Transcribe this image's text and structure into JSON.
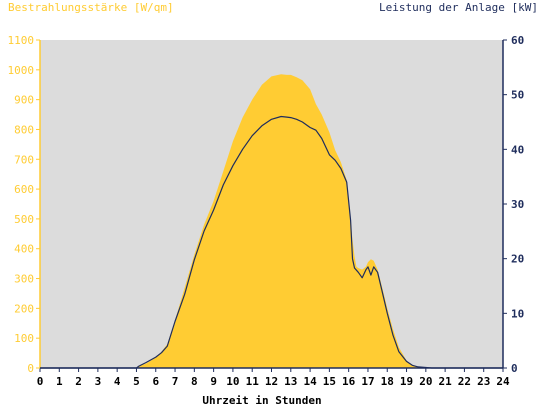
{
  "chart_data": {
    "type": "area",
    "title": "",
    "xlabel": "Uhrzeit in Stunden",
    "ylabel_left": "Bestrahlungsstärke [W/qm]",
    "ylabel_right": "Leistung der Anlage [kW]",
    "xlim": [
      0,
      24
    ],
    "ylim_left": [
      0,
      1100
    ],
    "ylim_right": [
      0,
      60
    ],
    "x_ticks": [
      "0",
      "1",
      "2",
      "3",
      "4",
      "5",
      "6",
      "7",
      "8",
      "9",
      "10",
      "11",
      "12",
      "13",
      "14",
      "15",
      "16",
      "17",
      "18",
      "19",
      "20",
      "21",
      "22",
      "23",
      "24"
    ],
    "y_left_ticks": [
      "0",
      "100",
      "200",
      "300",
      "400",
      "500",
      "600",
      "700",
      "800",
      "900",
      "1000",
      "1100"
    ],
    "y_right_ticks": [
      "0",
      "10",
      "20",
      "30",
      "40",
      "50",
      "60"
    ],
    "colors": {
      "plot_background": "#dcdcdc",
      "irradiance_fill": "#ffcc33",
      "power_line": "#1f2d5c",
      "left_axis_text": "#ffcc33",
      "right_axis_text": "#1f2d5c",
      "xlabel_text": "#000000"
    },
    "series": [
      {
        "axis": "left",
        "style": "area",
        "x": [
          0,
          5.0,
          5.1,
          5.5,
          6.0,
          6.3,
          6.6,
          7.0,
          7.5,
          8.0,
          8.5,
          9.0,
          9.5,
          10.0,
          10.5,
          11.0,
          11.5,
          12.0,
          12.5,
          12.8,
          13.0,
          13.3,
          13.6,
          14.0,
          14.3,
          14.6,
          15.0,
          15.3,
          15.6,
          15.9,
          16.2,
          16.3,
          16.4,
          16.5,
          16.7,
          16.9,
          17.0,
          17.15,
          17.3,
          17.5,
          17.7,
          18.0,
          18.3,
          18.6,
          19.0,
          19.3,
          19.6,
          20.0,
          20.3,
          20.5,
          24
        ],
        "y": [
          0,
          0,
          5,
          15,
          35,
          55,
          80,
          160,
          270,
          380,
          480,
          560,
          660,
          760,
          840,
          900,
          950,
          978,
          985,
          983,
          983,
          975,
          965,
          935,
          885,
          850,
          790,
          730,
          690,
          630,
          430,
          375,
          340,
          335,
          330,
          340,
          355,
          365,
          360,
          330,
          280,
          200,
          130,
          70,
          25,
          10,
          5,
          2,
          1,
          0,
          0
        ]
      },
      {
        "axis": "right",
        "style": "line",
        "x": [
          0,
          5.0,
          5.1,
          5.5,
          6.0,
          6.3,
          6.6,
          7.0,
          7.5,
          8.0,
          8.5,
          9.0,
          9.5,
          10.0,
          10.5,
          11.0,
          11.5,
          12.0,
          12.5,
          12.8,
          13.0,
          13.3,
          13.6,
          14.0,
          14.3,
          14.6,
          15.0,
          15.3,
          15.6,
          15.9,
          16.1,
          16.2,
          16.3,
          16.5,
          16.7,
          16.9,
          17.0,
          17.15,
          17.3,
          17.5,
          17.7,
          18.0,
          18.3,
          18.6,
          19.0,
          19.3,
          19.6,
          20.0,
          20.3,
          20.5,
          24
        ],
        "y": [
          0,
          0,
          0.3,
          1.0,
          2.0,
          2.8,
          4.0,
          8.5,
          13.5,
          19.8,
          25.0,
          28.9,
          33.5,
          37.0,
          40.0,
          42.5,
          44.3,
          45.5,
          46.0,
          45.9,
          45.8,
          45.5,
          45.0,
          44.0,
          43.5,
          42.0,
          39.0,
          38.0,
          36.5,
          34.0,
          27.0,
          20.0,
          18.3,
          17.5,
          16.5,
          18.0,
          18.5,
          17.0,
          18.5,
          17.5,
          14.5,
          10.0,
          6.0,
          3.0,
          1.2,
          0.5,
          0.2,
          0.1,
          0,
          0,
          0
        ]
      }
    ]
  }
}
